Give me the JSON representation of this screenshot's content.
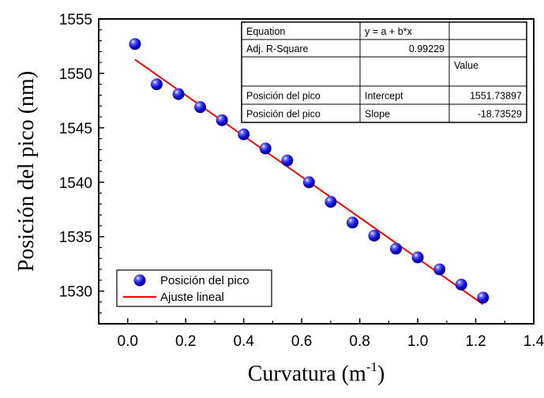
{
  "chart_data": {
    "type": "scatter",
    "xlabel": "Curvatura (m",
    "xlabel_sup": "-1",
    "xlabel_suffix": ")",
    "ylabel": "Posición del pico (nm)",
    "xlim": [
      -0.1,
      1.4
    ],
    "ylim": [
      1527,
      1555
    ],
    "xticks": [
      "0.0",
      "0.2",
      "0.4",
      "0.6",
      "0.8",
      "1.0",
      "1.2",
      "1.4"
    ],
    "yticks": [
      "1530",
      "1535",
      "1540",
      "1545",
      "1550",
      "1555"
    ],
    "series": [
      {
        "name": "Posición del pico",
        "marker": "sphere",
        "color": "#1a1aff",
        "points": [
          {
            "x": 0.025,
            "y": 1552.7
          },
          {
            "x": 0.1,
            "y": 1549.0
          },
          {
            "x": 0.175,
            "y": 1548.1
          },
          {
            "x": 0.25,
            "y": 1546.9
          },
          {
            "x": 0.325,
            "y": 1545.7
          },
          {
            "x": 0.4,
            "y": 1544.4
          },
          {
            "x": 0.475,
            "y": 1543.1
          },
          {
            "x": 0.55,
            "y": 1542.0
          },
          {
            "x": 0.625,
            "y": 1540.0
          },
          {
            "x": 0.7,
            "y": 1538.2
          },
          {
            "x": 0.775,
            "y": 1536.3
          },
          {
            "x": 0.85,
            "y": 1535.1
          },
          {
            "x": 0.925,
            "y": 1533.9
          },
          {
            "x": 1.0,
            "y": 1533.1
          },
          {
            "x": 1.075,
            "y": 1532.0
          },
          {
            "x": 1.15,
            "y": 1530.6
          },
          {
            "x": 1.225,
            "y": 1529.4
          }
        ]
      },
      {
        "name": "Ajuste lineal",
        "type": "line",
        "color": "#ff0000",
        "intercept": 1551.73897,
        "slope": -18.73529,
        "x_range": [
          0.025,
          1.225
        ]
      }
    ],
    "fit_table": {
      "rows": [
        [
          "Equation",
          "y = a + b*x",
          ""
        ],
        [
          "Adj. R-Square",
          "0.99229",
          ""
        ],
        [
          "",
          "",
          "Value"
        ],
        [
          "Posición del pico",
          "Intercept",
          "1551.73897"
        ],
        [
          "Posición del pico",
          "Slope",
          "-18.73529"
        ]
      ]
    },
    "legend": {
      "position": "bottom-left",
      "entries": [
        "Posición del pico",
        "Ajuste lineal"
      ]
    }
  }
}
